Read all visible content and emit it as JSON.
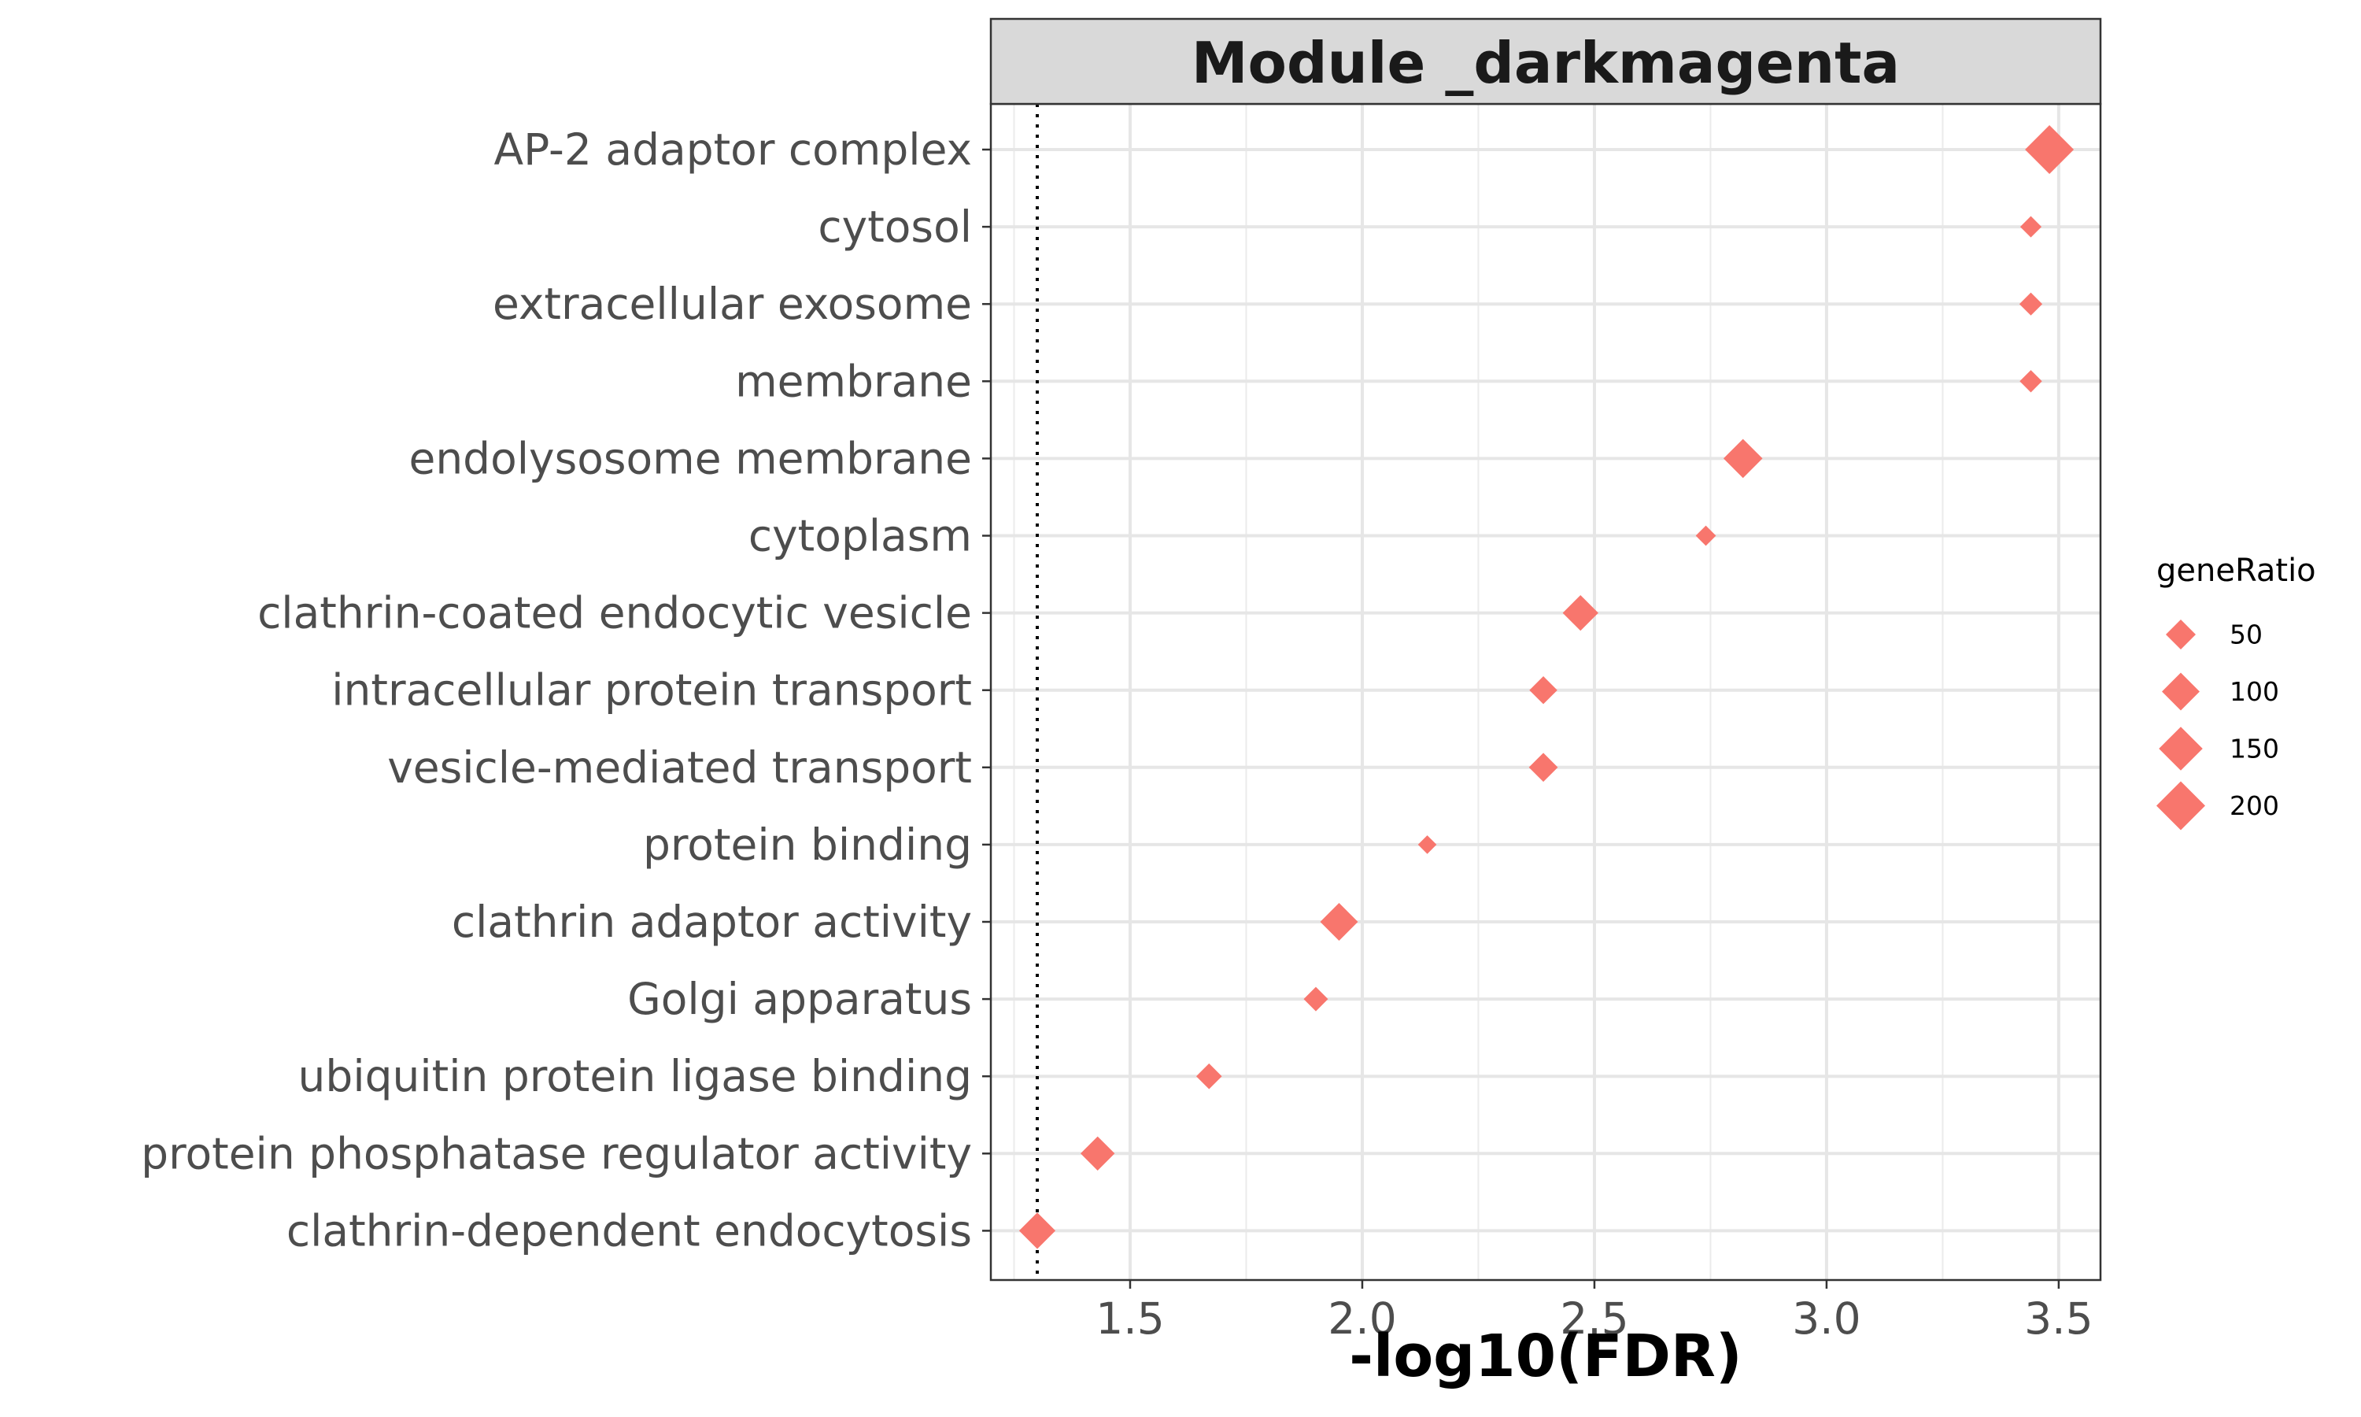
{
  "chart_data": {
    "type": "scatter",
    "title": "Module _darkmagenta",
    "xlabel": "-log10(FDR)",
    "ylabel": "",
    "xlim": [
      1.2,
      3.59
    ],
    "xticks": [
      1.5,
      2.0,
      2.5,
      3.0,
      3.5
    ],
    "xtick_labels": [
      "1.5",
      "2.0",
      "2.5",
      "3.0",
      "3.5"
    ],
    "threshold_line": 1.3,
    "grid": true,
    "legend": {
      "title": "geneRatio",
      "placement": "right",
      "entries": [
        {
          "label": "50",
          "value": 50
        },
        {
          "label": "100",
          "value": 100
        },
        {
          "label": "150",
          "value": 150
        },
        {
          "label": "200",
          "value": 200
        }
      ]
    },
    "marker_color": "#F8766D",
    "points": [
      {
        "term": "AP-2 adaptor complex",
        "x": 3.48,
        "geneRatio": 200
      },
      {
        "term": "cytosol",
        "x": 3.44,
        "geneRatio": 15
      },
      {
        "term": "extracellular exosome",
        "x": 3.44,
        "geneRatio": 20
      },
      {
        "term": "membrane",
        "x": 3.44,
        "geneRatio": 18
      },
      {
        "term": "endolysosome membrane",
        "x": 2.82,
        "geneRatio": 110
      },
      {
        "term": "cytoplasm",
        "x": 2.74,
        "geneRatio": 12
      },
      {
        "term": "clathrin-coated endocytic vesicle",
        "x": 2.47,
        "geneRatio": 85
      },
      {
        "term": "intracellular protein transport",
        "x": 2.39,
        "geneRatio": 40
      },
      {
        "term": "vesicle-mediated transport",
        "x": 2.39,
        "geneRatio": 45
      },
      {
        "term": "protein binding",
        "x": 2.14,
        "geneRatio": 8
      },
      {
        "term": "clathrin adaptor activity",
        "x": 1.95,
        "geneRatio": 100
      },
      {
        "term": "Golgi apparatus",
        "x": 1.9,
        "geneRatio": 25
      },
      {
        "term": "ubiquitin protein ligase binding",
        "x": 1.67,
        "geneRatio": 30
      },
      {
        "term": "protein phosphatase regulator activity",
        "x": 1.43,
        "geneRatio": 75
      },
      {
        "term": "clathrin-dependent endocytosis",
        "x": 1.3,
        "geneRatio": 90
      }
    ]
  }
}
